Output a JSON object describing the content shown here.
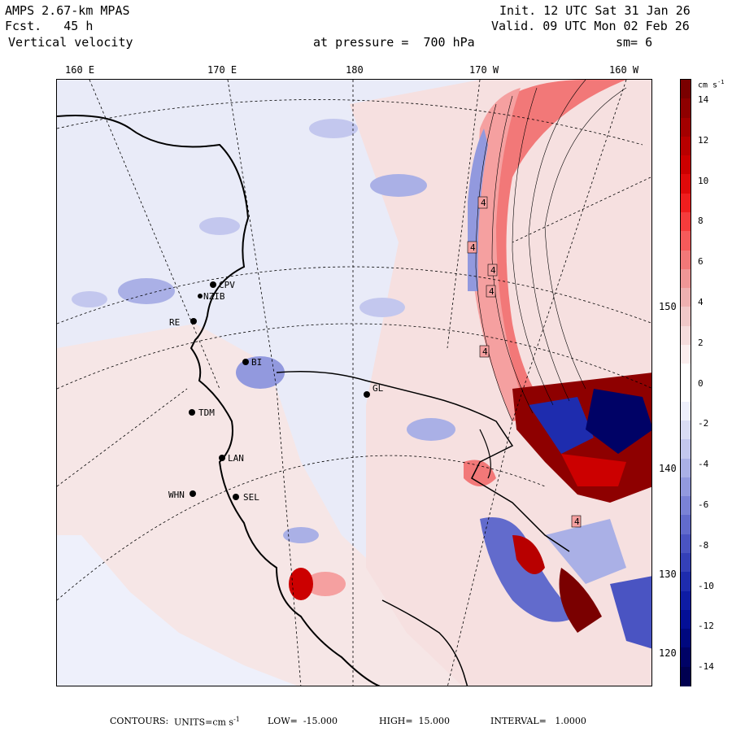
{
  "header": {
    "model": "AMPS 2.67-km MPAS",
    "forecast": "Fcst.   45 h",
    "field": "Vertical velocity",
    "init": "Init. 12 UTC Sat 31 Jan 26",
    "valid": "Valid. 09 UTC Mon 02 Feb 26",
    "pressure": "at pressure =  700 hPa",
    "smoothing": "sm= 6"
  },
  "longitude_labels": [
    "160 E",
    "170 E",
    "180",
    "170 W",
    "160 W"
  ],
  "latitude_labels": [
    "150 W",
    "140 W",
    "130 W",
    "120 W"
  ],
  "stations": [
    {
      "name": "CPV"
    },
    {
      "name": "NZIB"
    },
    {
      "name": "RE"
    },
    {
      "name": "BI"
    },
    {
      "name": "GL"
    },
    {
      "name": "TDM"
    },
    {
      "name": "LAN"
    },
    {
      "name": "WHN"
    },
    {
      "name": "SEL"
    }
  ],
  "contour_labels": [
    "4",
    "4",
    "4",
    "4",
    "4",
    "4"
  ],
  "colorbar": {
    "units": "cm s",
    "units_exp": "-1",
    "ticks": [
      "14",
      "12",
      "10",
      "8",
      "6",
      "4",
      "2",
      "0",
      "-2",
      "-4",
      "-6",
      "-8",
      "-10",
      "-12",
      "-14"
    ],
    "colors": [
      "#7a0000",
      "#8e0000",
      "#a30000",
      "#b80000",
      "#cc0000",
      "#e00a0a",
      "#f01e1e",
      "#f53c3c",
      "#f55a5a",
      "#f27878",
      "#ef9696",
      "#eeb0b0",
      "#f0c8c8",
      "#f5dcdc",
      "#fbeeee",
      "#ffffff",
      "#ffffff",
      "#eef0fb",
      "#d9dcf4",
      "#c3c7ee",
      "#aab0e6",
      "#9299de",
      "#7a82d6",
      "#626bcc",
      "#4a54c2",
      "#3440b8",
      "#1e2cae",
      "#0e1ca4",
      "#040f96",
      "#00087f",
      "#000266",
      "#000050"
    ]
  },
  "footer": {
    "contours": "CONTOURS:",
    "units_prefix": "UNITS=cm s",
    "units_exp": "-1",
    "low": "LOW=  -15.000",
    "high": "HIGH=  15.000",
    "interval": "INTERVAL=   1.0000"
  }
}
